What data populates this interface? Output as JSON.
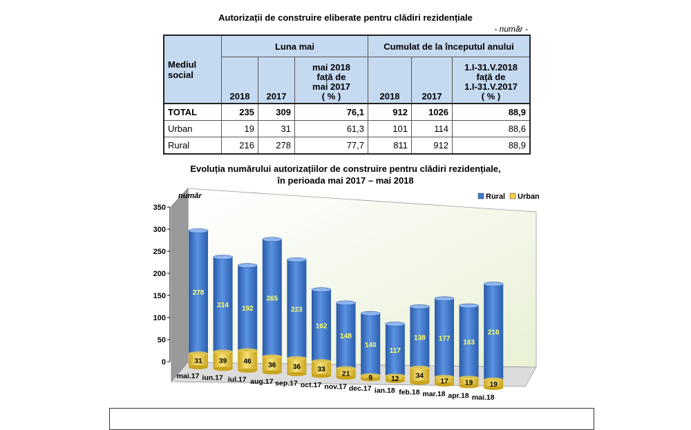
{
  "table": {
    "title": "Autorizații de construire eliberate pentru clădiri rezidențiale",
    "unit": "- număr -",
    "row_header": "Mediul social",
    "group1": "Luna mai",
    "group2": "Cumulat de la începutul anului",
    "cols1": [
      "2018",
      "2017"
    ],
    "col1_pct": [
      "mai 2018",
      "față de",
      "mai 2017",
      "( % )"
    ],
    "cols2": [
      "2018",
      "2017"
    ],
    "col2_pct": [
      "1.I-31.V.2018",
      "față de",
      "1.I-31.V.2017",
      "( % )"
    ],
    "rows": [
      {
        "label": "TOTAL",
        "values": [
          "235",
          "309",
          "76,1",
          "912",
          "1026",
          "88,9"
        ]
      },
      {
        "label": "Urban",
        "values": [
          "19",
          "31",
          "61,3",
          "101",
          "114",
          "88,6"
        ]
      },
      {
        "label": "Rural",
        "values": [
          "216",
          "278",
          "77,7",
          "811",
          "912",
          "88,9"
        ]
      }
    ]
  },
  "chart_title_line1": "Evoluția numărului autorizațiilor de construire pentru clădiri rezidențiale,",
  "chart_title_line2": "în perioada mai 2017 – mai 2018",
  "chart_data": {
    "type": "bar",
    "stacked": true,
    "ylabel": "număr",
    "ylim": [
      0,
      350
    ],
    "yticks": [
      0,
      50,
      100,
      150,
      200,
      250,
      300,
      350
    ],
    "legend_position": "top-right",
    "categories": [
      "mai.17",
      "iun.17",
      "iul.17",
      "aug.17",
      "sep.17",
      "oct.17",
      "nov.17",
      "dec.17",
      "ian.18",
      "feb.18",
      "mar.18",
      "apr.18",
      "mai.18"
    ],
    "series": [
      {
        "name": "Urban",
        "color": "#f2d04a",
        "values": [
          31,
          39,
          46,
          36,
          36,
          33,
          21,
          9,
          12,
          34,
          17,
          19,
          19
        ]
      },
      {
        "name": "Rural",
        "color": "#3f7ad0",
        "values": [
          278,
          214,
          192,
          265,
          223,
          162,
          148,
          140,
          117,
          138,
          177,
          163,
          216
        ]
      }
    ]
  }
}
